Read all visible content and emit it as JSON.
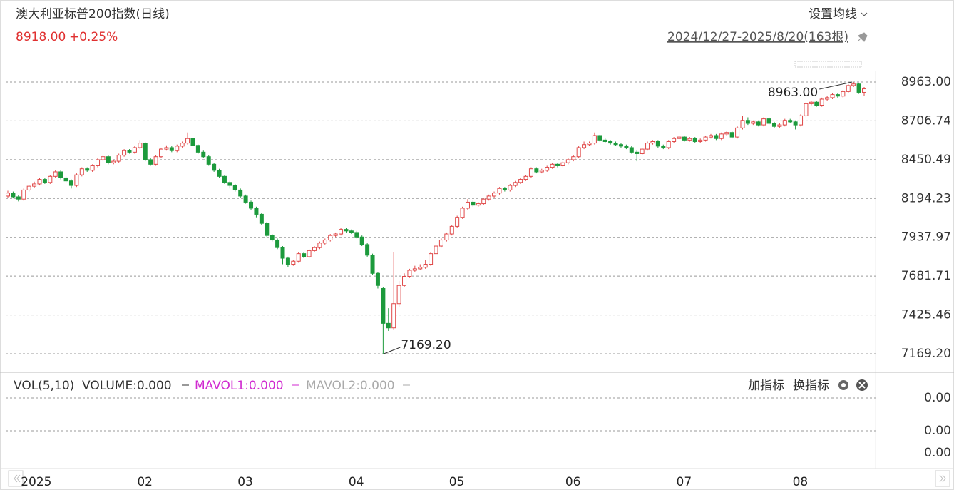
{
  "header": {
    "title": "澳大利亚标普200指数(日线)",
    "price": "8918.00",
    "change": "+0.25%",
    "ma_setting": "设置均线",
    "range": "2024/12/27-2025/8/20(163根)"
  },
  "chart_data": {
    "type": "candlestick",
    "categories": [
      null,
      null,
      null,
      "2025",
      null,
      null,
      null,
      null,
      null,
      null,
      null,
      null,
      null,
      null,
      null,
      null,
      null,
      null,
      null,
      null,
      null,
      null,
      null,
      null,
      null,
      "02",
      null,
      null,
      null,
      null,
      null,
      null,
      null,
      null,
      null,
      null,
      null,
      null,
      null,
      null,
      null,
      null,
      null,
      null,
      "03",
      null,
      null,
      null,
      null,
      null,
      null,
      null,
      null,
      null,
      null,
      null,
      null,
      null,
      null,
      null,
      null,
      null,
      null,
      null,
      null,
      "04",
      null,
      null,
      null,
      null,
      null,
      null,
      null,
      null,
      null,
      null,
      null,
      null,
      null,
      null,
      null,
      null,
      null,
      null,
      "05",
      null,
      null,
      null,
      null,
      null,
      null,
      null,
      null,
      null,
      null,
      null,
      null,
      null,
      null,
      null,
      null,
      null,
      null,
      null,
      null,
      null,
      "06",
      null,
      null,
      null,
      null,
      null,
      null,
      null,
      null,
      null,
      null,
      null,
      null,
      null,
      null,
      null,
      null,
      null,
      null,
      null,
      null,
      "07",
      null,
      null,
      null,
      null,
      null,
      null,
      null,
      null,
      null,
      null,
      null,
      null,
      null,
      null,
      null,
      null,
      null,
      null,
      null,
      null,
      null,
      "08",
      null,
      null,
      null,
      null,
      null,
      null,
      null,
      null,
      null,
      null,
      null,
      null,
      null
    ],
    "open": [
      8210,
      8230,
      8205,
      8190,
      8250,
      8275,
      8290,
      8320,
      8300,
      8340,
      8370,
      8330,
      8310,
      8280,
      8350,
      8390,
      8380,
      8410,
      8450,
      8470,
      8430,
      8440,
      8480,
      8510,
      8500,
      8530,
      8560,
      8450,
      8420,
      8470,
      8520,
      8530,
      8510,
      8540,
      8560,
      8590,
      8545,
      8500,
      8470,
      8420,
      8380,
      8340,
      8300,
      8280,
      8250,
      8210,
      8170,
      8130,
      8090,
      8030,
      7950,
      7920,
      7870,
      7800,
      7760,
      7780,
      7830,
      7810,
      7850,
      7870,
      7900,
      7920,
      7950,
      7960,
      7990,
      7980,
      7970,
      7940,
      7890,
      7820,
      7700,
      7600,
      7370,
      7340,
      7500,
      7620,
      7680,
      7720,
      7730,
      7740,
      7760,
      7830,
      7880,
      7920,
      7960,
      8010,
      8070,
      8130,
      8170,
      8150,
      8160,
      8190,
      8210,
      8230,
      8260,
      8250,
      8280,
      8300,
      8320,
      8340,
      8390,
      8370,
      8380,
      8400,
      8420,
      8410,
      8430,
      8450,
      8470,
      8530,
      8550,
      8560,
      8610,
      8580,
      8570,
      8560,
      8550,
      8540,
      8530,
      8500,
      8490,
      8520,
      8560,
      8570,
      8540,
      8530,
      8570,
      8590,
      8600,
      8580,
      8590,
      8570,
      8580,
      8600,
      8610,
      8590,
      8620,
      8630,
      8600,
      8660,
      8710,
      8690,
      8700,
      8680,
      8720,
      8690,
      8670,
      8680,
      8710,
      8700,
      8680,
      8740,
      8820,
      8830,
      8810,
      8850,
      8860,
      8880,
      8870,
      8900,
      8940,
      8950,
      8895
    ],
    "high": [
      8245,
      8240,
      8215,
      8260,
      8285,
      8305,
      8330,
      8330,
      8350,
      8380,
      8380,
      8340,
      8320,
      8360,
      8400,
      8400,
      8420,
      8460,
      8480,
      8480,
      8450,
      8490,
      8520,
      8520,
      8540,
      8580,
      8565,
      8460,
      8480,
      8530,
      8545,
      8540,
      8550,
      8570,
      8630,
      8595,
      8550,
      8510,
      8480,
      8430,
      8390,
      8350,
      8310,
      8290,
      8260,
      8220,
      8180,
      8140,
      8100,
      8040,
      7960,
      7930,
      7880,
      7810,
      7790,
      7840,
      7840,
      7860,
      7880,
      7910,
      7930,
      7960,
      7970,
      8000,
      8000,
      7990,
      7980,
      7950,
      7900,
      7830,
      7710,
      7610,
      7470,
      7840,
      7650,
      7700,
      7730,
      7750,
      7760,
      7790,
      7840,
      7890,
      7930,
      7970,
      8020,
      8080,
      8140,
      8190,
      8180,
      8170,
      8200,
      8220,
      8240,
      8270,
      8270,
      8290,
      8310,
      8330,
      8350,
      8400,
      8400,
      8390,
      8410,
      8430,
      8430,
      8440,
      8460,
      8480,
      8540,
      8570,
      8570,
      8630,
      8615,
      8590,
      8580,
      8570,
      8560,
      8550,
      8540,
      8510,
      8530,
      8570,
      8580,
      8580,
      8550,
      8580,
      8600,
      8610,
      8610,
      8600,
      8600,
      8590,
      8610,
      8620,
      8620,
      8630,
      8640,
      8640,
      8670,
      8740,
      8730,
      8710,
      8710,
      8730,
      8730,
      8700,
      8690,
      8720,
      8720,
      8710,
      8750,
      8830,
      8840,
      8840,
      8860,
      8870,
      8890,
      8890,
      8910,
      8950,
      8963,
      8955,
      8930
    ],
    "low": [
      8200,
      8195,
      8175,
      8180,
      8240,
      8265,
      8280,
      8290,
      8290,
      8330,
      8320,
      8300,
      8260,
      8270,
      8340,
      8370,
      8370,
      8400,
      8440,
      8420,
      8420,
      8430,
      8470,
      8490,
      8490,
      8520,
      8440,
      8410,
      8410,
      8460,
      8510,
      8500,
      8500,
      8530,
      8550,
      8540,
      8490,
      8460,
      8410,
      8370,
      8330,
      8290,
      8260,
      8240,
      8200,
      8160,
      8120,
      8070,
      8020,
      7940,
      7910,
      7860,
      7760,
      7740,
      7750,
      7770,
      7800,
      7800,
      7840,
      7860,
      7890,
      7910,
      7940,
      7950,
      7970,
      7960,
      7930,
      7880,
      7810,
      7690,
      7600,
      7169.2,
      7320,
      7330,
      7480,
      7610,
      7670,
      7710,
      7720,
      7730,
      7750,
      7820,
      7870,
      7910,
      7950,
      8000,
      8060,
      8120,
      8140,
      8140,
      8150,
      8180,
      8200,
      8220,
      8240,
      8240,
      8270,
      8290,
      8310,
      8330,
      8360,
      8360,
      8370,
      8390,
      8400,
      8400,
      8420,
      8440,
      8460,
      8520,
      8540,
      8550,
      8570,
      8560,
      8550,
      8540,
      8530,
      8520,
      8490,
      8440,
      8480,
      8510,
      8550,
      8530,
      8520,
      8520,
      8560,
      8580,
      8570,
      8570,
      8560,
      8560,
      8570,
      8590,
      8580,
      8580,
      8610,
      8590,
      8590,
      8650,
      8680,
      8680,
      8670,
      8670,
      8680,
      8660,
      8660,
      8670,
      8690,
      8650,
      8670,
      8730,
      8810,
      8800,
      8800,
      8840,
      8850,
      8860,
      8860,
      8890,
      8930,
      8885,
      8870
    ],
    "close": [
      8230,
      8205,
      8190,
      8250,
      8275,
      8290,
      8320,
      8300,
      8340,
      8370,
      8330,
      8310,
      8280,
      8350,
      8390,
      8380,
      8410,
      8450,
      8470,
      8430,
      8440,
      8480,
      8510,
      8500,
      8530,
      8560,
      8450,
      8420,
      8470,
      8520,
      8530,
      8510,
      8540,
      8560,
      8590,
      8545,
      8500,
      8470,
      8420,
      8380,
      8340,
      8300,
      8280,
      8250,
      8210,
      8170,
      8130,
      8090,
      8030,
      7950,
      7920,
      7870,
      7800,
      7760,
      7780,
      7830,
      7810,
      7850,
      7870,
      7900,
      7920,
      7950,
      7960,
      7990,
      7980,
      7970,
      7940,
      7890,
      7820,
      7700,
      7620,
      7370,
      7340,
      7500,
      7620,
      7680,
      7720,
      7730,
      7740,
      7760,
      7830,
      7880,
      7920,
      7960,
      8010,
      8070,
      8130,
      8170,
      8150,
      8160,
      8190,
      8210,
      8230,
      8260,
      8250,
      8280,
      8300,
      8320,
      8340,
      8390,
      8370,
      8380,
      8400,
      8420,
      8410,
      8430,
      8450,
      8470,
      8530,
      8550,
      8560,
      8610,
      8580,
      8570,
      8560,
      8550,
      8540,
      8530,
      8500,
      8490,
      8520,
      8560,
      8570,
      8540,
      8530,
      8570,
      8590,
      8600,
      8580,
      8590,
      8570,
      8580,
      8600,
      8610,
      8590,
      8620,
      8630,
      8600,
      8660,
      8710,
      8690,
      8700,
      8680,
      8720,
      8690,
      8670,
      8680,
      8710,
      8700,
      8680,
      8740,
      8820,
      8830,
      8810,
      8850,
      8860,
      8880,
      8870,
      8900,
      8940,
      8950,
      8895,
      8918
    ],
    "up_color": "#e04848",
    "down_color": "#1c9a3c",
    "ylim": [
      7150.4,
      9033.6
    ],
    "yticks": [
      {
        "value": 8963,
        "label": "8963.00"
      },
      {
        "value": 8706.74,
        "label": "8706.74"
      },
      {
        "value": 8450.49,
        "label": "8450.49"
      },
      {
        "value": 8194.23,
        "label": "8194.23"
      },
      {
        "value": 7937.97,
        "label": "7937.97"
      },
      {
        "value": 7681.71,
        "label": "7681.71"
      },
      {
        "value": 7425.46,
        "label": "7425.46"
      },
      {
        "value": 7169.2,
        "label": "7169.20"
      }
    ],
    "grid": true,
    "max_label": {
      "value": 8963,
      "label": "8963.00"
    },
    "min_label": {
      "value": 7169.2,
      "label": "7169.20"
    }
  },
  "volume_panel": {
    "title": "VOL(5,10)",
    "volume": "VOLUME:0.000",
    "mavol1": "MAVOL1:0.000",
    "mavol2": "MAVOL2:0.000",
    "add": "加指标",
    "switch": "换指标",
    "labels": [
      "0.00",
      "0.00",
      "0.00"
    ]
  }
}
